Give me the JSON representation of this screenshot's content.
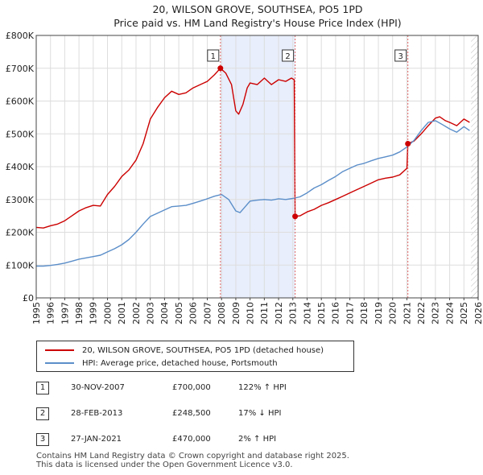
{
  "chart_data": {
    "type": "line",
    "title": "20, WILSON GROVE, SOUTHSEA, PO5 1PD",
    "subtitle": "Price paid vs. HM Land Registry's House Price Index (HPI)",
    "xlim": [
      1995,
      2026
    ],
    "ylim": [
      0,
      800000
    ],
    "yticks": [
      0,
      100000,
      200000,
      300000,
      400000,
      500000,
      600000,
      700000,
      800000
    ],
    "ytick_labels": [
      "£0",
      "£100K",
      "£200K",
      "£300K",
      "£400K",
      "£500K",
      "£600K",
      "£700K",
      "£800K"
    ],
    "xticks": [
      1995,
      1996,
      1997,
      1998,
      1999,
      2000,
      2001,
      2002,
      2003,
      2004,
      2005,
      2006,
      2007,
      2008,
      2009,
      2010,
      2011,
      2012,
      2013,
      2014,
      2015,
      2016,
      2017,
      2018,
      2019,
      2020,
      2021,
      2022,
      2023,
      2024,
      2025,
      2026
    ],
    "grid": true,
    "shaded_region": [
      2007.92,
      2013.16
    ],
    "future_hatch_from": 2025.5,
    "series": [
      {
        "name": "20, WILSON GROVE, SOUTHSEA, PO5 1PD (detached house)",
        "color": "#cc0000",
        "x": [
          1995.0,
          1995.5,
          1996.0,
          1996.5,
          1997.0,
          1997.5,
          1998.0,
          1998.5,
          1999.0,
          1999.5,
          2000.0,
          2000.5,
          2001.0,
          2001.5,
          2002.0,
          2002.5,
          2003.0,
          2003.5,
          2004.0,
          2004.5,
          2005.0,
          2005.5,
          2006.0,
          2006.5,
          2007.0,
          2007.5,
          2007.92,
          2008.3,
          2008.7,
          2009.0,
          2009.2,
          2009.5,
          2009.8,
          2010.0,
          2010.5,
          2011.0,
          2011.5,
          2012.0,
          2012.5,
          2012.9,
          2013.1,
          2013.16,
          2013.5,
          2014.0,
          2014.5,
          2015.0,
          2015.5,
          2016.0,
          2016.5,
          2017.0,
          2017.5,
          2018.0,
          2018.5,
          2019.0,
          2019.5,
          2020.0,
          2020.5,
          2021.0,
          2021.07,
          2021.5,
          2022.0,
          2022.5,
          2023.0,
          2023.3,
          2023.7,
          2024.0,
          2024.5,
          2025.0,
          2025.4
        ],
        "values": [
          215000,
          213000,
          220000,
          225000,
          235000,
          250000,
          265000,
          275000,
          282000,
          280000,
          315000,
          340000,
          370000,
          390000,
          420000,
          470000,
          545000,
          580000,
          610000,
          630000,
          620000,
          625000,
          640000,
          650000,
          660000,
          680000,
          700000,
          685000,
          650000,
          570000,
          560000,
          590000,
          640000,
          655000,
          650000,
          670000,
          650000,
          665000,
          660000,
          670000,
          665000,
          248500,
          250000,
          262000,
          270000,
          282000,
          290000,
          300000,
          310000,
          320000,
          330000,
          340000,
          350000,
          360000,
          365000,
          368000,
          375000,
          395000,
          470000,
          478000,
          500000,
          525000,
          548000,
          552000,
          540000,
          535000,
          525000,
          545000,
          535000
        ]
      },
      {
        "name": "HPI: Average price, detached house, Portsmouth",
        "color": "#5b8ec9",
        "x": [
          1995.0,
          1995.5,
          1996.0,
          1996.5,
          1997.0,
          1997.5,
          1998.0,
          1998.5,
          1999.0,
          1999.5,
          2000.0,
          2000.5,
          2001.0,
          2001.5,
          2002.0,
          2002.5,
          2003.0,
          2003.5,
          2004.0,
          2004.5,
          2005.0,
          2005.5,
          2006.0,
          2006.5,
          2007.0,
          2007.5,
          2008.0,
          2008.5,
          2009.0,
          2009.3,
          2009.7,
          2010.0,
          2010.5,
          2011.0,
          2011.5,
          2012.0,
          2012.5,
          2013.0,
          2013.5,
          2014.0,
          2014.5,
          2015.0,
          2015.5,
          2016.0,
          2016.5,
          2017.0,
          2017.5,
          2018.0,
          2018.5,
          2019.0,
          2019.5,
          2020.0,
          2020.5,
          2021.0,
          2021.5,
          2022.0,
          2022.5,
          2023.0,
          2023.5,
          2024.0,
          2024.5,
          2025.0,
          2025.4
        ],
        "values": [
          97000,
          97000,
          99000,
          102000,
          106000,
          112000,
          118000,
          122000,
          126000,
          130000,
          140000,
          150000,
          162000,
          178000,
          200000,
          225000,
          248000,
          258000,
          268000,
          278000,
          280000,
          282000,
          288000,
          295000,
          302000,
          310000,
          315000,
          300000,
          265000,
          260000,
          280000,
          295000,
          298000,
          300000,
          298000,
          302000,
          300000,
          303000,
          308000,
          320000,
          335000,
          345000,
          358000,
          370000,
          385000,
          395000,
          405000,
          410000,
          418000,
          425000,
          430000,
          435000,
          445000,
          460000,
          480000,
          510000,
          535000,
          540000,
          528000,
          515000,
          505000,
          522000,
          510000
        ]
      }
    ],
    "sale_markers": [
      {
        "label": "1",
        "x": 2007.92,
        "y": 700000
      },
      {
        "label": "2",
        "x": 2013.16,
        "y": 248500
      },
      {
        "label": "3",
        "x": 2021.07,
        "y": 470000
      }
    ]
  },
  "legend": {
    "items": [
      {
        "label": "20, WILSON GROVE, SOUTHSEA, PO5 1PD (detached house)",
        "color": "#cc0000"
      },
      {
        "label": "HPI: Average price, detached house, Portsmouth",
        "color": "#5b8ec9"
      }
    ]
  },
  "sales": [
    {
      "num": "1",
      "date": "30-NOV-2007",
      "price": "£700,000",
      "hpi": "122% ↑ HPI"
    },
    {
      "num": "2",
      "date": "28-FEB-2013",
      "price": "£248,500",
      "hpi": "17% ↓ HPI"
    },
    {
      "num": "3",
      "date": "27-JAN-2021",
      "price": "£470,000",
      "hpi": "2% ↑ HPI"
    }
  ],
  "footer": {
    "line1": "Contains HM Land Registry data © Crown copyright and database right 2025.",
    "line2": "This data is licensed under the Open Government Licence v3.0."
  }
}
